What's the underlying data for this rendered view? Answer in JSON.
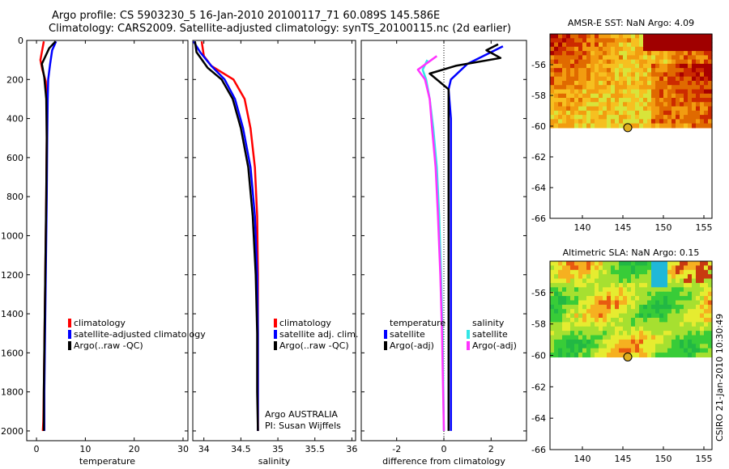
{
  "header": {
    "line1": "Argo profile: CS 5903230_5 16-Jan-2010 20100117_71 60.089S 145.586E",
    "line2": "Climatology: CARS2009. Satellite-adjusted climatology: synTS_20100115.nc (2d earlier)"
  },
  "side_stamp": "CSIRO 21-Jan-2010 10:30:49",
  "colors": {
    "clim": "#ff0000",
    "sat": "#0000ff",
    "argo": "#000000",
    "cyan": "#33e6e6",
    "magenta": "#ff33ff"
  },
  "chart_data": [
    {
      "type": "line",
      "name": "temperature",
      "xlabel": "temperature",
      "xlim": [
        -2,
        31
      ],
      "ylim": [
        2050,
        0
      ],
      "xticks": [
        "0",
        "10",
        "20",
        "30"
      ],
      "xtick_values": [
        0,
        10,
        20,
        30
      ],
      "yticks": [
        "0",
        "200",
        "400",
        "600",
        "800",
        "1000",
        "1200",
        "1400",
        "1600",
        "1800",
        "2000"
      ],
      "ytick_values": [
        0,
        200,
        400,
        600,
        800,
        1000,
        1200,
        1400,
        1600,
        1800,
        2000
      ],
      "legend": [
        "climatology",
        "satellite-adjusted climatology",
        "Argo(..raw -QC)"
      ],
      "series": [
        {
          "name": "climatology",
          "color": "clim",
          "x": [
            1.5,
            0.8,
            1.2,
            1.9,
            2.1,
            2.1,
            2.0,
            1.9,
            1.8,
            1.7,
            1.6,
            1.5,
            1.4,
            1.3
          ],
          "y": [
            5,
            100,
            150,
            210,
            300,
            500,
            800,
            1000,
            1200,
            1400,
            1600,
            1800,
            1950,
            2000
          ]
        },
        {
          "name": "satellite-adjusted climatology",
          "color": "sat",
          "x": [
            4.0,
            3.2,
            2.8,
            2.4,
            2.3,
            2.2,
            2.1,
            2.0,
            1.9,
            1.8,
            1.7,
            1.6,
            1.6
          ],
          "y": [
            5,
            50,
            120,
            200,
            300,
            500,
            800,
            1000,
            1200,
            1400,
            1600,
            1800,
            2000
          ]
        },
        {
          "name": "Argo(..raw -QC)",
          "color": "argo",
          "x": [
            3.9,
            2.6,
            1.1,
            1.6,
            2.0,
            2.1,
            2.0,
            1.9,
            1.8,
            1.7,
            1.6,
            1.5,
            1.5
          ],
          "y": [
            5,
            40,
            120,
            190,
            300,
            500,
            800,
            1000,
            1200,
            1400,
            1600,
            1800,
            2000
          ]
        }
      ]
    },
    {
      "type": "line",
      "name": "salinity",
      "xlabel": "salinity",
      "xlim": [
        33.85,
        36.05
      ],
      "ylim": [
        2050,
        0
      ],
      "xticks": [
        "34",
        "34.5",
        "35",
        "35.5",
        "36"
      ],
      "xtick_values": [
        34,
        34.5,
        35,
        35.5,
        36
      ],
      "legend": [
        "climatology",
        "satellite adj. clim.",
        "Argo(..raw -QC)"
      ],
      "annotations": [
        "Argo AUSTRALIA",
        "PI: Susan Wijffels"
      ],
      "series": [
        {
          "name": "climatology",
          "color": "clim",
          "x": [
            33.97,
            34.0,
            34.1,
            34.4,
            34.55,
            34.63,
            34.69,
            34.72,
            34.73,
            34.73,
            34.73,
            34.73
          ],
          "y": [
            5,
            80,
            130,
            200,
            300,
            450,
            650,
            900,
            1200,
            1500,
            1800,
            2000
          ]
        },
        {
          "name": "satellite adj. clim.",
          "color": "sat",
          "x": [
            33.86,
            33.95,
            34.1,
            34.28,
            34.42,
            34.53,
            34.63,
            34.69,
            34.72,
            34.73,
            34.73,
            34.73
          ],
          "y": [
            5,
            60,
            130,
            200,
            300,
            450,
            650,
            900,
            1200,
            1500,
            1800,
            2000
          ]
        },
        {
          "name": "Argo(..raw -QC)",
          "color": "argo",
          "x": [
            33.88,
            33.9,
            34.05,
            34.24,
            34.39,
            34.5,
            34.6,
            34.66,
            34.7,
            34.72,
            34.72,
            34.73
          ],
          "y": [
            5,
            60,
            140,
            200,
            300,
            450,
            650,
            900,
            1200,
            1500,
            1800,
            2000
          ]
        }
      ]
    },
    {
      "type": "line",
      "name": "difference",
      "xlabel": "difference from climatology",
      "xlim": [
        -3.5,
        3.5
      ],
      "ylim": [
        2050,
        0
      ],
      "xticks": [
        "-2",
        "0",
        "2"
      ],
      "xtick_values": [
        -2,
        0,
        2
      ],
      "legend_titles": [
        "temperature",
        "salinity"
      ],
      "legend_left": [
        "satellite",
        "Argo(-adj)"
      ],
      "legend_right": [
        "satellite",
        "Argo(-adj)"
      ],
      "series": [
        {
          "name": "temperature satellite",
          "color": "sat",
          "x": [
            2.5,
            2.0,
            1.0,
            0.3,
            0.2,
            0.3,
            0.3,
            0.3,
            0.3,
            0.3,
            0.3,
            0.3
          ],
          "y": [
            30,
            60,
            120,
            200,
            250,
            400,
            600,
            900,
            1200,
            1500,
            1800,
            2000
          ]
        },
        {
          "name": "temperature Argo(-adj)",
          "color": "argo",
          "x": [
            2.3,
            1.8,
            2.4,
            0.5,
            -0.6,
            0.2,
            0.2,
            0.2,
            0.2,
            0.2,
            0.2,
            0.2
          ],
          "y": [
            20,
            50,
            90,
            130,
            170,
            250,
            400,
            700,
            1000,
            1300,
            1700,
            2000
          ]
        },
        {
          "name": "salinity satellite",
          "color": "cyan",
          "x": [
            -0.7,
            -0.9,
            -0.75,
            -0.6,
            -0.45,
            -0.3,
            -0.2,
            -0.12,
            -0.06,
            -0.02,
            0.0
          ],
          "y": [
            100,
            150,
            200,
            300,
            450,
            650,
            900,
            1200,
            1500,
            1800,
            2000
          ]
        },
        {
          "name": "salinity Argo(-adj)",
          "color": "magenta",
          "x": [
            -0.3,
            -1.1,
            -0.8,
            -0.6,
            -0.5,
            -0.35,
            -0.25,
            -0.15,
            -0.08,
            -0.03,
            0.0
          ],
          "y": [
            80,
            150,
            200,
            300,
            450,
            650,
            900,
            1200,
            1500,
            1800,
            2000
          ]
        }
      ]
    },
    {
      "type": "heatmap",
      "name": "sst-map",
      "title": "AMSR-E SST: NaN Argo: 4.09",
      "xlim": [
        136,
        156
      ],
      "ylim": [
        -66,
        -54
      ],
      "xticks": [
        "140",
        "145",
        "150",
        "155"
      ],
      "xtick_values": [
        140,
        145,
        150,
        155
      ],
      "yticks": [
        "-56",
        "-58",
        "-60",
        "-62",
        "-64",
        "-66"
      ],
      "ytick_values": [
        -56,
        -58,
        -60,
        -62,
        -64,
        -66
      ],
      "data_lat_range": [
        -60.1,
        -54
      ],
      "marker": {
        "lon": 145.6,
        "lat": -60.1
      }
    },
    {
      "type": "heatmap",
      "name": "sla-map",
      "title": "Altimetric SLA: NaN Argo: 0.15",
      "xlim": [
        136,
        156
      ],
      "ylim": [
        -66,
        -54
      ],
      "xticks": [
        "140",
        "145",
        "150",
        "155"
      ],
      "xtick_values": [
        140,
        145,
        150,
        155
      ],
      "yticks": [
        "-56",
        "-58",
        "-60",
        "-62",
        "-64",
        "-66"
      ],
      "ytick_values": [
        -56,
        -58,
        -60,
        -62,
        -64,
        -66
      ],
      "data_lat_range": [
        -60.1,
        -54
      ],
      "marker": {
        "lon": 145.6,
        "lat": -60.1
      }
    }
  ]
}
